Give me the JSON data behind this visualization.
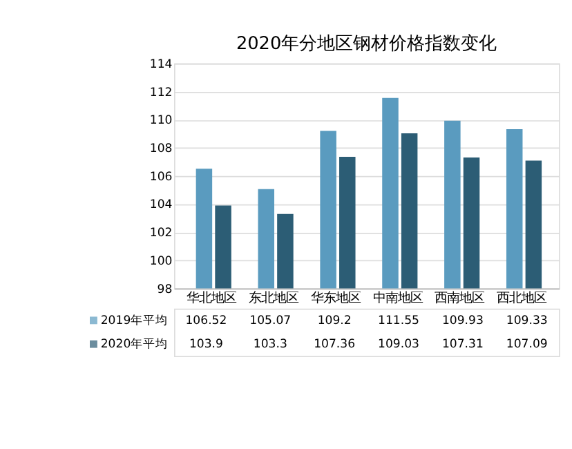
{
  "chart_data": {
    "type": "bar",
    "title": "2020年分地区钢材价格指数变化",
    "categories": [
      "华北地区",
      "东北地区",
      "华东地区",
      "中南地区",
      "西南地区",
      "西北地区"
    ],
    "series": [
      {
        "name": "2019年平均",
        "color": "#5a9bbf",
        "values": [
          106.52,
          105.07,
          109.2,
          111.55,
          109.93,
          109.33
        ]
      },
      {
        "name": "2020年平均",
        "color": "#2c5d75",
        "values": [
          103.9,
          103.3,
          107.36,
          109.03,
          107.31,
          107.09
        ]
      }
    ],
    "ylim": [
      98,
      114
    ],
    "yticks": [
      98,
      100,
      102,
      104,
      106,
      108,
      110,
      112,
      114
    ],
    "grid": "y",
    "data_labels": true,
    "legend": "bottom"
  }
}
